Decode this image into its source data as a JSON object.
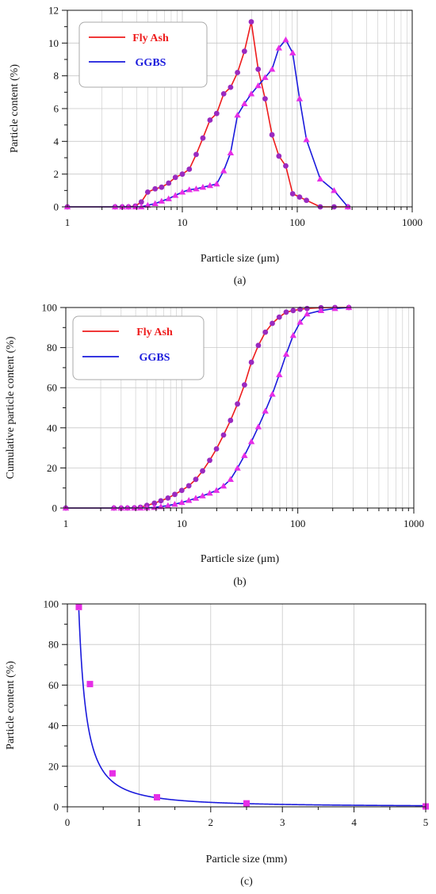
{
  "colors": {
    "fly_ash": "#ee1c1c",
    "ggbs": "#1a1adc",
    "marker_circle": "#9a2ac0",
    "marker_triangle": "#e62ee6",
    "marker_square": "#e62ee6",
    "grid": "#c8c8c8",
    "fit_curve": "#1a1adc"
  },
  "chart_data": [
    {
      "id": "a",
      "type": "line",
      "caption": "(a)",
      "xlabel": "Particle size (μm)",
      "ylabel": "Particle content (%)",
      "xscale": "log",
      "xlim": [
        1,
        1000
      ],
      "ylim": [
        0,
        12
      ],
      "xticks": [
        1,
        10,
        100,
        1000
      ],
      "yticks": [
        0,
        2,
        4,
        6,
        8,
        10,
        12
      ],
      "grid": true,
      "legend_position": "top-left",
      "series": [
        {
          "name": "Fly Ash",
          "color": "#ee1c1c",
          "marker": "circle",
          "marker_color": "#9a2ac0",
          "x": [
            1,
            2.6,
            3.0,
            3.4,
            3.9,
            4.4,
            5.0,
            5.8,
            6.6,
            7.6,
            8.7,
            10.0,
            11.5,
            13.2,
            15.1,
            17.4,
            19.9,
            22.9,
            26.3,
            30.2,
            34.7,
            39.8,
            45.7,
            52.5,
            60.3,
            69.2,
            79.4,
            91.2,
            104.7,
            120.2,
            158.5,
            209.0,
            275.4
          ],
          "y": [
            0,
            0,
            0,
            0,
            0.05,
            0.3,
            0.9,
            1.1,
            1.2,
            1.45,
            1.8,
            2.0,
            2.3,
            3.2,
            4.2,
            5.3,
            5.7,
            6.9,
            7.3,
            8.2,
            9.5,
            11.3,
            8.4,
            6.6,
            4.4,
            3.1,
            2.5,
            0.8,
            0.6,
            0.4,
            0,
            0,
            0
          ]
        },
        {
          "name": "GGBS",
          "color": "#1a1adc",
          "marker": "triangle",
          "marker_color": "#e62ee6",
          "x": [
            1,
            2.6,
            3.0,
            3.4,
            3.9,
            4.4,
            5.0,
            5.8,
            6.6,
            7.6,
            8.7,
            10.0,
            11.5,
            13.2,
            15.1,
            17.4,
            19.9,
            22.9,
            26.3,
            30.2,
            34.7,
            39.8,
            45.7,
            52.5,
            60.3,
            69.2,
            79.4,
            91.2,
            104.7,
            120.2,
            158.5,
            209.0,
            275.4
          ],
          "y": [
            0,
            0,
            0,
            0,
            0,
            0,
            0.1,
            0.2,
            0.35,
            0.5,
            0.7,
            0.9,
            1.05,
            1.1,
            1.2,
            1.3,
            1.4,
            2.2,
            3.3,
            5.6,
            6.3,
            6.9,
            7.4,
            7.9,
            8.4,
            9.7,
            10.2,
            9.4,
            6.6,
            4.1,
            1.7,
            1.0,
            0
          ]
        }
      ]
    },
    {
      "id": "b",
      "type": "line",
      "caption": "(b)",
      "xlabel": "Particle size (μm)",
      "ylabel": "Cumulative particle content (%)",
      "xscale": "log",
      "xlim": [
        1,
        1000
      ],
      "ylim": [
        0,
        100
      ],
      "xticks": [
        1,
        10,
        100,
        1000
      ],
      "yticks": [
        0,
        20,
        40,
        60,
        80,
        100
      ],
      "grid": true,
      "legend_position": "top-left",
      "series": [
        {
          "name": "Fly Ash",
          "color": "#ee1c1c",
          "marker": "circle",
          "marker_color": "#9a2ac0",
          "x": [
            1,
            2.6,
            3.0,
            3.4,
            3.9,
            4.4,
            5.0,
            5.8,
            6.6,
            7.6,
            8.7,
            10.0,
            11.5,
            13.2,
            15.1,
            17.4,
            19.9,
            22.9,
            26.3,
            30.2,
            34.7,
            39.8,
            45.7,
            52.5,
            60.3,
            69.2,
            79.4,
            91.2,
            104.7,
            120.2,
            158.5,
            209.0,
            275.4
          ],
          "y": [
            0,
            0,
            0,
            0,
            0.1,
            0.4,
            1.3,
            2.4,
            3.6,
            5.0,
            6.8,
            8.8,
            11.1,
            14.3,
            18.5,
            23.8,
            29.5,
            36.4,
            43.7,
            51.9,
            61.4,
            72.7,
            81.1,
            87.7,
            92.1,
            95.2,
            97.7,
            98.5,
            99.1,
            99.5,
            99.9,
            100,
            100
          ]
        },
        {
          "name": "GGBS",
          "color": "#1a1adc",
          "marker": "triangle",
          "marker_color": "#e62ee6",
          "x": [
            1,
            2.6,
            3.0,
            3.4,
            3.9,
            4.4,
            5.0,
            5.8,
            6.6,
            7.6,
            8.7,
            10.0,
            11.5,
            13.2,
            15.1,
            17.4,
            19.9,
            22.9,
            26.3,
            30.2,
            34.7,
            39.8,
            45.7,
            52.5,
            60.3,
            69.2,
            79.4,
            91.2,
            104.7,
            120.2,
            158.5,
            209.0,
            275.4
          ],
          "y": [
            0,
            0,
            0,
            0,
            0,
            0,
            0.1,
            0.3,
            0.7,
            1.2,
            1.9,
            2.8,
            3.8,
            4.9,
            6.1,
            7.4,
            8.8,
            11.0,
            14.3,
            19.9,
            26.2,
            33.1,
            40.5,
            48.4,
            56.8,
            66.5,
            76.7,
            86.1,
            92.7,
            96.8,
            98.5,
            99.5,
            100
          ]
        }
      ]
    },
    {
      "id": "c",
      "type": "scatter",
      "caption": "(c)",
      "xlabel": "Particle size (mm)",
      "ylabel": "Particle content (%)",
      "xscale": "linear",
      "xlim": [
        0,
        5
      ],
      "ylim": [
        0,
        100
      ],
      "xticks": [
        0,
        1,
        2,
        3,
        4,
        5
      ],
      "yticks": [
        0,
        20,
        40,
        60,
        80,
        100
      ],
      "grid": true,
      "series": [
        {
          "marker": "square",
          "marker_color": "#e62ee6",
          "x": [
            0.16,
            0.315,
            0.63,
            1.25,
            2.5,
            5.0
          ],
          "y": [
            98.5,
            60.5,
            16.5,
            4.7,
            1.7,
            0.2
          ]
        }
      ],
      "fit": {
        "color": "#1a1adc",
        "coefficient": 6.2,
        "exponent": -1.5
      }
    }
  ]
}
